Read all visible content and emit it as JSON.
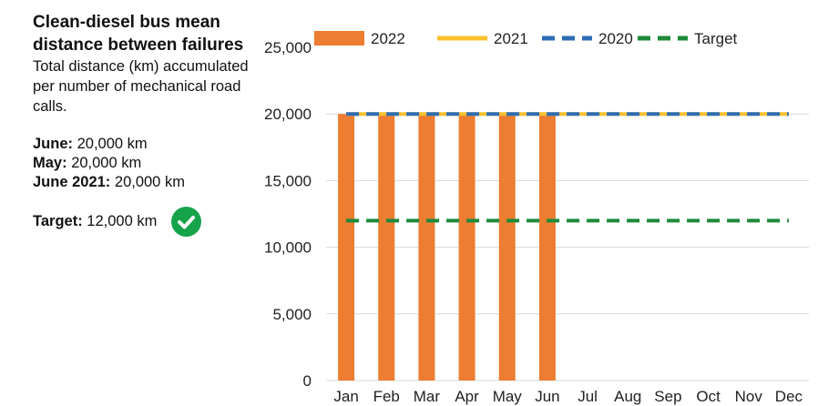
{
  "panel": {
    "title": "Clean-diesel bus mean distance between failures",
    "description": "Total distance (km) accumulated per number of mechanical road calls.",
    "stats": [
      {
        "label": "June:",
        "value": "20,000 km"
      },
      {
        "label": "May:",
        "value": "20,000 km"
      },
      {
        "label": "June 2021:",
        "value": "20,000 km"
      }
    ],
    "target_label": "Target:",
    "target_value": "12,000 km",
    "target_icon": "check-circle-icon",
    "target_icon_color": "#16a34a"
  },
  "chart_data": {
    "type": "bar",
    "categories": [
      "Jan",
      "Feb",
      "Mar",
      "Apr",
      "May",
      "Jun",
      "Jul",
      "Aug",
      "Sep",
      "Oct",
      "Nov",
      "Dec"
    ],
    "ylim": [
      0,
      25000
    ],
    "yticks": [
      "0",
      "5,000",
      "10,000",
      "15,000",
      "20,000",
      "25,000"
    ],
    "ytick_values": [
      0,
      5000,
      10000,
      15000,
      20000,
      25000
    ],
    "grid": true,
    "legend_position": "top",
    "series": [
      {
        "name": "2022",
        "kind": "bar",
        "color": "#ed7d31",
        "values": [
          20000,
          20000,
          20000,
          20000,
          20000,
          20000,
          null,
          null,
          null,
          null,
          null,
          null
        ]
      },
      {
        "name": "2021",
        "kind": "line",
        "color": "#fbc02d",
        "values": [
          20000,
          20000,
          20000,
          20000,
          20000,
          20000,
          20000,
          20000,
          20000,
          20000,
          20000,
          20000
        ]
      },
      {
        "name": "2020",
        "kind": "dashed-line",
        "color": "#2e6db4",
        "values": [
          20000,
          20000,
          20000,
          20000,
          20000,
          20000,
          20000,
          20000,
          20000,
          20000,
          20000,
          20000
        ]
      },
      {
        "name": "Target",
        "kind": "dashed-line",
        "color": "#1e8a3a",
        "values": [
          12000,
          12000,
          12000,
          12000,
          12000,
          12000,
          12000,
          12000,
          12000,
          12000,
          12000,
          12000
        ]
      }
    ]
  }
}
